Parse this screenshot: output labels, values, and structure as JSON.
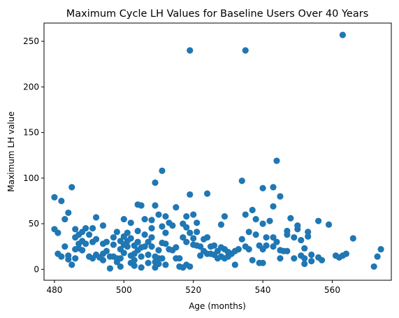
{
  "chart_data": {
    "type": "scatter",
    "title": "Maximum Cycle LH Values for Baseline Users Over 40 Years",
    "xlabel": "Age (months)",
    "ylabel": "Maximum LH value",
    "xlim": [
      477,
      577
    ],
    "ylim": [
      -12,
      270
    ],
    "xticks": [
      480,
      500,
      520,
      540,
      560
    ],
    "yticks": [
      0,
      50,
      100,
      150,
      200,
      250
    ],
    "grid": false,
    "marker_color": "#1f77b4",
    "points": [
      [
        480,
        79
      ],
      [
        480,
        44
      ],
      [
        481,
        40
      ],
      [
        481,
        17
      ],
      [
        482,
        75
      ],
      [
        482,
        14
      ],
      [
        483,
        55
      ],
      [
        483,
        25
      ],
      [
        484,
        62
      ],
      [
        484,
        15
      ],
      [
        484,
        11
      ],
      [
        485,
        90
      ],
      [
        485,
        5
      ],
      [
        486,
        44
      ],
      [
        486,
        35
      ],
      [
        486,
        22
      ],
      [
        486,
        12
      ],
      [
        487,
        38
      ],
      [
        487,
        28
      ],
      [
        487,
        23
      ],
      [
        488,
        41
      ],
      [
        488,
        31
      ],
      [
        488,
        21
      ],
      [
        489,
        45
      ],
      [
        489,
        28
      ],
      [
        490,
        38
      ],
      [
        490,
        14
      ],
      [
        491,
        45
      ],
      [
        491,
        30
      ],
      [
        491,
        12
      ],
      [
        492,
        57
      ],
      [
        492,
        33
      ],
      [
        492,
        16
      ],
      [
        493,
        13
      ],
      [
        494,
        48
      ],
      [
        494,
        28
      ],
      [
        494,
        17
      ],
      [
        494,
        10
      ],
      [
        495,
        30
      ],
      [
        495,
        20
      ],
      [
        496,
        14
      ],
      [
        496,
        1
      ],
      [
        497,
        35
      ],
      [
        497,
        27
      ],
      [
        497,
        14
      ],
      [
        498,
        41
      ],
      [
        498,
        12
      ],
      [
        498,
        8
      ],
      [
        499,
        31
      ],
      [
        499,
        22
      ],
      [
        499,
        12
      ],
      [
        499,
        3
      ],
      [
        500,
        55
      ],
      [
        500,
        36
      ],
      [
        500,
        27
      ],
      [
        500,
        18
      ],
      [
        501,
        40
      ],
      [
        501,
        31
      ],
      [
        501,
        25
      ],
      [
        502,
        51
      ],
      [
        502,
        34
      ],
      [
        502,
        15
      ],
      [
        502,
        7
      ],
      [
        503,
        26
      ],
      [
        503,
        17
      ],
      [
        503,
        10
      ],
      [
        503,
        4
      ],
      [
        504,
        71
      ],
      [
        504,
        42
      ],
      [
        504,
        30
      ],
      [
        504,
        21
      ],
      [
        505,
        70
      ],
      [
        505,
        24
      ],
      [
        505,
        14
      ],
      [
        505,
        2
      ],
      [
        506,
        55
      ],
      [
        506,
        38
      ],
      [
        506,
        25
      ],
      [
        507,
        30
      ],
      [
        507,
        16
      ],
      [
        507,
        7
      ],
      [
        508,
        54
      ],
      [
        508,
        45
      ],
      [
        508,
        35
      ],
      [
        508,
        25
      ],
      [
        509,
        95
      ],
      [
        509,
        70
      ],
      [
        509,
        14
      ],
      [
        509,
        8
      ],
      [
        509,
        2
      ],
      [
        510,
        60
      ],
      [
        510,
        21
      ],
      [
        510,
        12
      ],
      [
        510,
        6
      ],
      [
        511,
        108
      ],
      [
        511,
        47
      ],
      [
        511,
        29
      ],
      [
        511,
        12
      ],
      [
        512,
        58
      ],
      [
        512,
        40
      ],
      [
        512,
        28
      ],
      [
        512,
        5
      ],
      [
        513,
        51
      ],
      [
        513,
        22
      ],
      [
        514,
        48
      ],
      [
        514,
        21
      ],
      [
        515,
        68
      ],
      [
        515,
        24
      ],
      [
        515,
        12
      ],
      [
        516,
        12
      ],
      [
        516,
        3
      ],
      [
        517,
        50
      ],
      [
        517,
        35
      ],
      [
        517,
        2
      ],
      [
        518,
        58
      ],
      [
        518,
        46
      ],
      [
        518,
        30
      ],
      [
        518,
        5
      ],
      [
        519,
        240
      ],
      [
        519,
        82
      ],
      [
        519,
        40
      ],
      [
        519,
        3
      ],
      [
        520,
        60
      ],
      [
        520,
        34
      ],
      [
        520,
        27
      ],
      [
        521,
        51
      ],
      [
        521,
        41
      ],
      [
        521,
        26
      ],
      [
        522,
        25
      ],
      [
        522,
        15
      ],
      [
        523,
        33
      ],
      [
        523,
        20
      ],
      [
        524,
        83
      ],
      [
        524,
        35
      ],
      [
        524,
        17
      ],
      [
        525,
        25
      ],
      [
        525,
        17
      ],
      [
        526,
        26
      ],
      [
        526,
        16
      ],
      [
        527,
        20
      ],
      [
        527,
        12
      ],
      [
        528,
        49
      ],
      [
        528,
        24
      ],
      [
        528,
        14
      ],
      [
        529,
        58
      ],
      [
        529,
        22
      ],
      [
        529,
        12
      ],
      [
        530,
        19
      ],
      [
        530,
        14
      ],
      [
        531,
        17
      ],
      [
        532,
        20
      ],
      [
        532,
        5
      ],
      [
        533,
        22
      ],
      [
        534,
        97
      ],
      [
        534,
        33
      ],
      [
        535,
        240
      ],
      [
        535,
        60
      ],
      [
        535,
        25
      ],
      [
        536,
        41
      ],
      [
        536,
        22
      ],
      [
        537,
        65
      ],
      [
        537,
        10
      ],
      [
        538,
        55
      ],
      [
        538,
        38
      ],
      [
        539,
        26
      ],
      [
        539,
        7
      ],
      [
        540,
        89
      ],
      [
        540,
        50
      ],
      [
        540,
        22
      ],
      [
        540,
        7
      ],
      [
        541,
        35
      ],
      [
        541,
        26
      ],
      [
        542,
        53
      ],
      [
        543,
        90
      ],
      [
        543,
        69
      ],
      [
        543,
        25
      ],
      [
        543,
        35
      ],
      [
        544,
        119
      ],
      [
        544,
        30
      ],
      [
        545,
        80
      ],
      [
        545,
        21
      ],
      [
        545,
        12
      ],
      [
        546,
        20
      ],
      [
        547,
        42
      ],
      [
        547,
        38
      ],
      [
        547,
        20
      ],
      [
        548,
        56
      ],
      [
        549,
        35
      ],
      [
        549,
        12
      ],
      [
        550,
        48
      ],
      [
        550,
        44
      ],
      [
        551,
        32
      ],
      [
        551,
        15
      ],
      [
        552,
        23
      ],
      [
        552,
        12
      ],
      [
        552,
        6
      ],
      [
        553,
        41
      ],
      [
        553,
        36
      ],
      [
        554,
        16
      ],
      [
        554,
        9
      ],
      [
        556,
        53
      ],
      [
        556,
        13
      ],
      [
        557,
        10
      ],
      [
        559,
        49
      ],
      [
        561,
        15
      ],
      [
        562,
        13
      ],
      [
        563,
        257
      ],
      [
        563,
        15
      ],
      [
        564,
        17
      ],
      [
        566,
        34
      ],
      [
        572,
        3
      ],
      [
        573,
        14
      ],
      [
        574,
        22
      ]
    ]
  }
}
